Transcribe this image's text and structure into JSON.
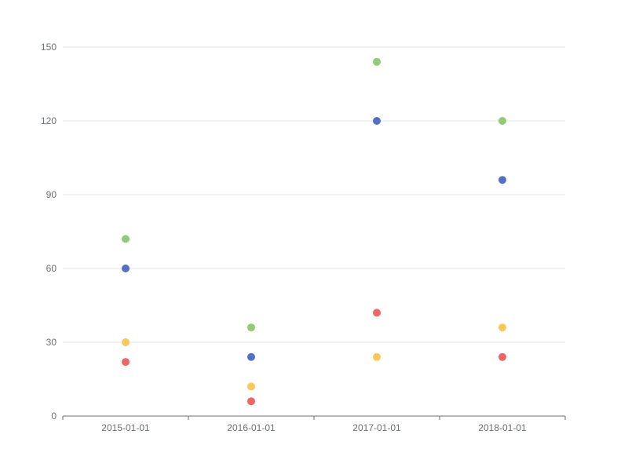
{
  "chart_data": {
    "type": "scatter",
    "title": "",
    "xlabel": "",
    "ylabel": "",
    "categories": [
      "2015-01-01",
      "2016-01-01",
      "2017-01-01",
      "2018-01-01"
    ],
    "ylim": [
      0,
      150
    ],
    "yticks": [
      0,
      30,
      60,
      90,
      120,
      150
    ],
    "grid": true,
    "series": [
      {
        "color": "#91cc75",
        "values": [
          72,
          36,
          144,
          120
        ]
      },
      {
        "color": "#5470c6",
        "values": [
          60,
          24,
          120,
          96
        ]
      },
      {
        "color": "#fac858",
        "values": [
          30,
          12,
          24,
          36
        ]
      },
      {
        "color": "#ee6666",
        "values": [
          22,
          6,
          42,
          24
        ]
      }
    ]
  }
}
